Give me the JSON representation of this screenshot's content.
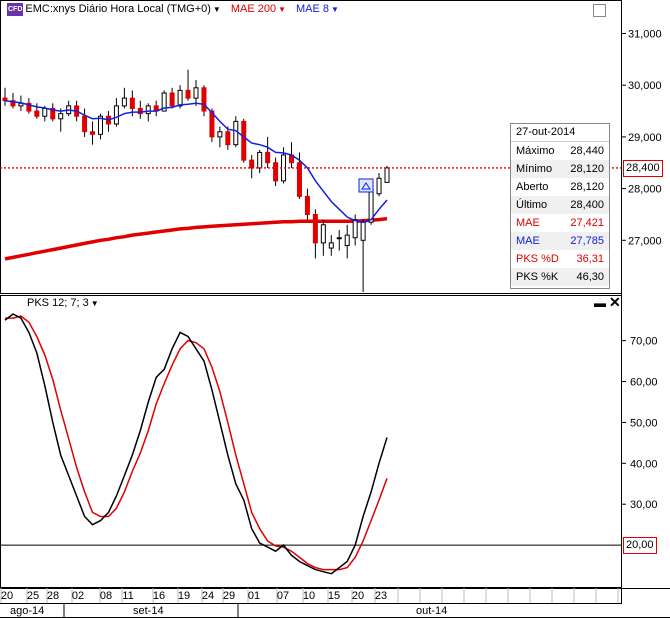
{
  "header": {
    "badge": "CFD",
    "symbol": "EMC:xnys Diário Hora Local (TMG+0)",
    "ind1": "MAE 200",
    "ind2": "MAE 8",
    "colors": {
      "ind1": "#e00000",
      "ind2": "#1020e0"
    }
  },
  "oscillator_header": {
    "label": "PKS 12; 7; 3"
  },
  "price_axis": {
    "ticks": [
      "31,000",
      "30,000",
      "29,000",
      "28,000",
      "27,000"
    ],
    "current_price_tag": "28,400"
  },
  "osc_axis": {
    "ticks": [
      "70,00",
      "60,00",
      "50,00",
      "40,00",
      "30,00"
    ],
    "level_tag": "20,00"
  },
  "info_box": {
    "date": "27-out-2014",
    "rows": [
      {
        "label": "Máximo",
        "value": "28,440",
        "color": "#000000"
      },
      {
        "label": "Mínimo",
        "value": "28,120",
        "color": "#000000"
      },
      {
        "label": "Aberto",
        "value": "28,120",
        "color": "#000000"
      },
      {
        "label": "Último",
        "value": "28,400",
        "color": "#000000"
      },
      {
        "label": "MAE",
        "value": "27,421",
        "color": "#e00000"
      },
      {
        "label": "MAE",
        "value": "27,785",
        "color": "#1020e0"
      },
      {
        "label": "PKS %D",
        "value": "36,31",
        "color": "#e00000"
      },
      {
        "label": "PKS %K",
        "value": "46,30",
        "color": "#000000"
      }
    ]
  },
  "x_axis": {
    "day_labels": [
      "20",
      "25",
      "28",
      "02",
      "08",
      "11",
      "16",
      "19",
      "24",
      "29",
      "01",
      "07",
      "10",
      "15",
      "20",
      "23"
    ],
    "month_labels": [
      "ago-14",
      "set-14",
      "out-14"
    ]
  },
  "chart_data": [
    {
      "type": "candlestick",
      "title": "EMC:xnys Diário Hora Local (TMG+0)",
      "ylim": [
        26.0,
        31.3
      ],
      "candles": [
        {
          "o": 29.75,
          "h": 29.95,
          "l": 29.6,
          "c": 29.7
        },
        {
          "o": 29.7,
          "h": 29.85,
          "l": 29.55,
          "c": 29.6
        },
        {
          "o": 29.6,
          "h": 29.8,
          "l": 29.5,
          "c": 29.65
        },
        {
          "o": 29.65,
          "h": 29.75,
          "l": 29.45,
          "c": 29.5
        },
        {
          "o": 29.5,
          "h": 29.65,
          "l": 29.35,
          "c": 29.4
        },
        {
          "o": 29.4,
          "h": 29.6,
          "l": 29.3,
          "c": 29.55
        },
        {
          "o": 29.55,
          "h": 29.65,
          "l": 29.3,
          "c": 29.35
        },
        {
          "o": 29.35,
          "h": 29.55,
          "l": 29.1,
          "c": 29.45
        },
        {
          "o": 29.45,
          "h": 29.7,
          "l": 29.4,
          "c": 29.6
        },
        {
          "o": 29.6,
          "h": 29.7,
          "l": 29.3,
          "c": 29.4
        },
        {
          "o": 29.4,
          "h": 29.55,
          "l": 29.0,
          "c": 29.1
        },
        {
          "o": 29.1,
          "h": 29.3,
          "l": 28.85,
          "c": 29.05
        },
        {
          "o": 29.05,
          "h": 29.45,
          "l": 28.95,
          "c": 29.4
        },
        {
          "o": 29.4,
          "h": 29.5,
          "l": 29.1,
          "c": 29.25
        },
        {
          "o": 29.25,
          "h": 29.75,
          "l": 29.2,
          "c": 29.6
        },
        {
          "o": 29.6,
          "h": 29.95,
          "l": 29.55,
          "c": 29.75
        },
        {
          "o": 29.75,
          "h": 29.9,
          "l": 29.4,
          "c": 29.55
        },
        {
          "o": 29.55,
          "h": 29.7,
          "l": 29.35,
          "c": 29.45
        },
        {
          "o": 29.45,
          "h": 29.65,
          "l": 29.3,
          "c": 29.6
        },
        {
          "o": 29.6,
          "h": 29.7,
          "l": 29.4,
          "c": 29.5
        },
        {
          "o": 29.5,
          "h": 29.9,
          "l": 29.5,
          "c": 29.85
        },
        {
          "o": 29.85,
          "h": 29.95,
          "l": 29.55,
          "c": 29.6
        },
        {
          "o": 29.6,
          "h": 30.0,
          "l": 29.55,
          "c": 29.9
        },
        {
          "o": 29.9,
          "h": 30.3,
          "l": 29.7,
          "c": 29.75
        },
        {
          "o": 29.75,
          "h": 30.1,
          "l": 29.6,
          "c": 29.95
        },
        {
          "o": 29.95,
          "h": 30.0,
          "l": 29.4,
          "c": 29.5
        },
        {
          "o": 29.5,
          "h": 29.55,
          "l": 28.9,
          "c": 29.0
        },
        {
          "o": 29.0,
          "h": 29.2,
          "l": 28.8,
          "c": 29.1
        },
        {
          "o": 29.1,
          "h": 29.2,
          "l": 28.75,
          "c": 28.85
        },
        {
          "o": 28.85,
          "h": 29.4,
          "l": 28.8,
          "c": 29.3
        },
        {
          "o": 29.3,
          "h": 29.35,
          "l": 28.5,
          "c": 28.55
        },
        {
          "o": 28.55,
          "h": 28.65,
          "l": 28.2,
          "c": 28.4
        },
        {
          "o": 28.4,
          "h": 28.75,
          "l": 28.3,
          "c": 28.7
        },
        {
          "o": 28.7,
          "h": 29.0,
          "l": 28.4,
          "c": 28.5
        },
        {
          "o": 28.5,
          "h": 28.6,
          "l": 28.05,
          "c": 28.15
        },
        {
          "o": 28.15,
          "h": 28.8,
          "l": 28.1,
          "c": 28.65
        },
        {
          "o": 28.65,
          "h": 28.9,
          "l": 28.4,
          "c": 28.5
        },
        {
          "o": 28.5,
          "h": 28.7,
          "l": 27.8,
          "c": 27.85
        },
        {
          "o": 27.85,
          "h": 28.0,
          "l": 27.4,
          "c": 27.5
        },
        {
          "o": 27.5,
          "h": 27.6,
          "l": 26.65,
          "c": 26.95
        },
        {
          "o": 26.95,
          "h": 27.4,
          "l": 26.7,
          "c": 27.3
        },
        {
          "o": 26.85,
          "h": 27.1,
          "l": 26.7,
          "c": 26.95
        },
        {
          "o": 27.05,
          "h": 27.2,
          "l": 26.8,
          "c": 27.05
        },
        {
          "o": 26.9,
          "h": 27.3,
          "l": 26.65,
          "c": 27.1
        },
        {
          "o": 27.05,
          "h": 27.5,
          "l": 26.9,
          "c": 27.4
        },
        {
          "o": 27.0,
          "h": 27.4,
          "l": 26.0,
          "c": 27.35
        },
        {
          "o": 27.35,
          "h": 28.1,
          "l": 27.3,
          "c": 28.0
        },
        {
          "o": 27.9,
          "h": 28.3,
          "l": 27.85,
          "c": 28.2
        },
        {
          "o": 28.12,
          "h": 28.44,
          "l": 28.12,
          "c": 28.4
        }
      ],
      "series": [
        {
          "name": "MAE 200",
          "color": "#e00000",
          "values": [
            26.64,
            26.67,
            26.7,
            26.73,
            26.76,
            26.79,
            26.82,
            26.85,
            26.88,
            26.91,
            26.94,
            26.97,
            27.0,
            27.02,
            27.05,
            27.07,
            27.1,
            27.12,
            27.14,
            27.16,
            27.18,
            27.2,
            27.22,
            27.23,
            27.25,
            27.26,
            27.27,
            27.28,
            27.29,
            27.3,
            27.31,
            27.32,
            27.33,
            27.34,
            27.35,
            27.36,
            27.36,
            27.37,
            27.37,
            27.37,
            27.37,
            27.37,
            27.37,
            27.37,
            27.37,
            27.38,
            27.39,
            27.4,
            27.42
          ]
        },
        {
          "name": "MAE 8",
          "color": "#1020e0",
          "values": [
            29.7,
            29.68,
            29.66,
            29.62,
            29.58,
            29.56,
            29.52,
            29.5,
            29.52,
            29.5,
            29.42,
            29.35,
            29.36,
            29.33,
            29.38,
            29.45,
            29.48,
            29.48,
            29.5,
            29.5,
            29.56,
            29.57,
            29.62,
            29.63,
            29.65,
            29.63,
            29.47,
            29.3,
            29.15,
            29.12,
            29.0,
            28.88,
            28.85,
            28.8,
            28.7,
            28.69,
            28.65,
            28.55,
            28.4,
            28.15,
            27.95,
            27.75,
            27.6,
            27.45,
            27.38,
            27.35,
            27.4,
            27.6,
            27.78
          ]
        }
      ],
      "current_price_line": 28.4
    },
    {
      "type": "line",
      "title": "PKS 12; 7; 3",
      "ylim": [
        10,
        77
      ],
      "level_line": 20.0,
      "series": [
        {
          "name": "PKS %K",
          "color": "#000000",
          "values": [
            75.0,
            76.5,
            75.5,
            72.0,
            67.0,
            59.0,
            50.0,
            42.0,
            37.0,
            32.0,
            27.0,
            25.0,
            26.0,
            28.0,
            32.0,
            37.0,
            42.0,
            48.0,
            55.0,
            61.0,
            63.0,
            68.0,
            72.0,
            71.0,
            68.0,
            65.0,
            58.0,
            50.0,
            42.0,
            35.0,
            31.0,
            24.0,
            20.5,
            19.5,
            18.5,
            20.0,
            17.5,
            16.0,
            15.0,
            14.0,
            13.5,
            13.0,
            14.5,
            16.0,
            20.0,
            27.0,
            33.0,
            40.0,
            46.3
          ]
        },
        {
          "name": "PKS %D",
          "color": "#e00000",
          "values": [
            75.5,
            75.5,
            76.0,
            74.5,
            71.0,
            66.5,
            60.5,
            53.0,
            46.0,
            39.0,
            33.0,
            28.0,
            27.0,
            27.0,
            29.0,
            33.0,
            38.0,
            42.5,
            48.0,
            54.5,
            59.5,
            64.0,
            68.0,
            70.0,
            69.5,
            68.0,
            63.5,
            57.5,
            50.0,
            42.0,
            35.0,
            28.0,
            24.0,
            21.0,
            19.8,
            19.5,
            18.5,
            17.0,
            15.5,
            14.5,
            14.0,
            14.0,
            14.0,
            14.5,
            17.0,
            21.0,
            26.0,
            31.0,
            36.31
          ]
        }
      ]
    }
  ]
}
